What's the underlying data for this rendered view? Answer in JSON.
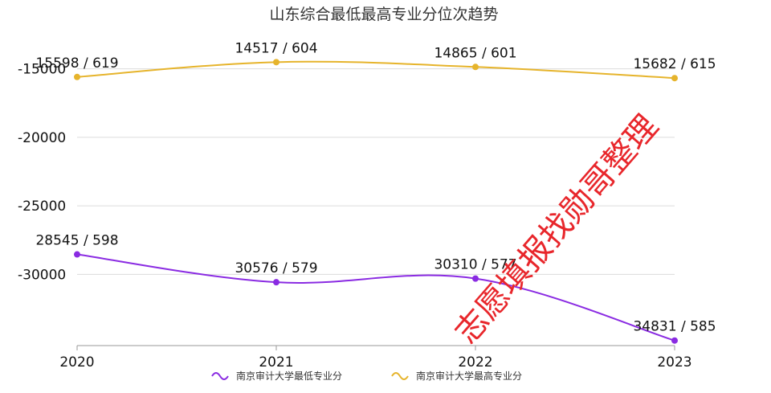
{
  "chart_data": {
    "type": "line",
    "title": "山东综合最低最高专业分位次趋势",
    "x": [
      "2020",
      "2021",
      "2022",
      "2023"
    ],
    "y_ticks": [
      -15000,
      -20000,
      -25000,
      -30000
    ],
    "y_tick_labels": [
      "-15000",
      "-20000",
      "-25000",
      "-30000"
    ],
    "ylim": [
      -35200,
      -13500
    ],
    "grid": true,
    "legend_position": "bottom-center",
    "series": [
      {
        "name": "南京审计大学最低专业分",
        "color": "#8a2be2",
        "values": [
          -28545,
          -30576,
          -30310,
          -34831
        ],
        "labels": [
          "28545 / 598",
          "30576 / 579",
          "30310 / 577",
          "34831 / 585"
        ]
      },
      {
        "name": "南京审计大学最高专业分",
        "color": "#e6b42c",
        "values": [
          -15598,
          -14517,
          -14865,
          -15682
        ],
        "labels": [
          "15598 / 619",
          "14517 / 604",
          "14865 / 601",
          "15682 / 615"
        ]
      }
    ]
  },
  "watermark": "志愿填报找勋哥整理"
}
